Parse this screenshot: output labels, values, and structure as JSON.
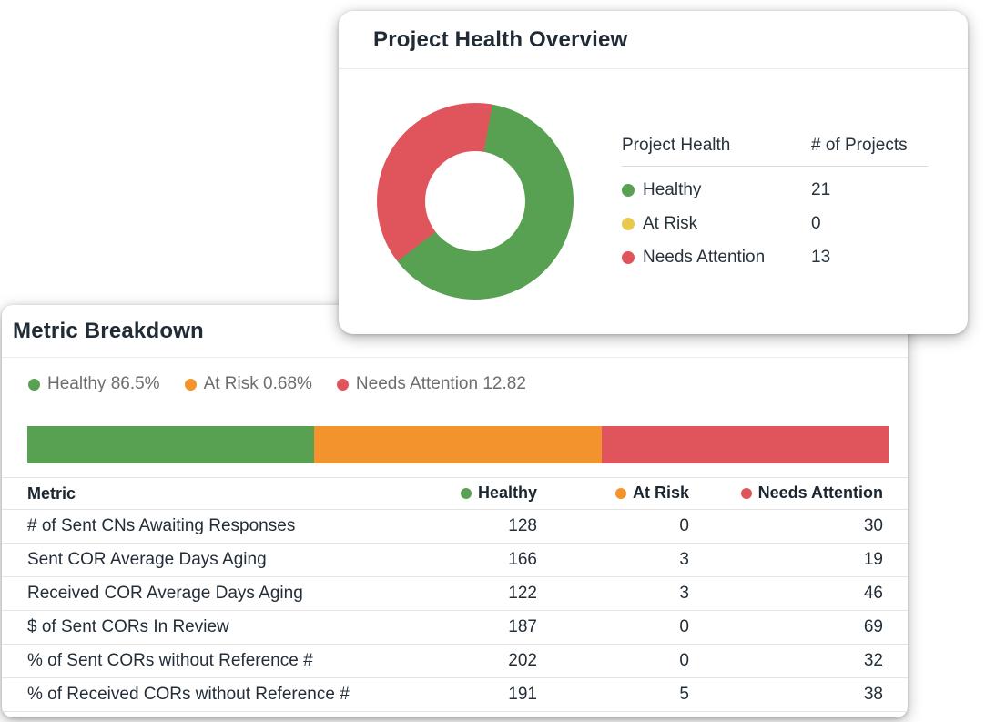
{
  "colors": {
    "healthy_green": "#58a152",
    "at_risk_yellow": "#e8c84e",
    "at_risk_orange": "#f2932d",
    "needs_attention_red": "#e0555c",
    "card_background": "#ffffff",
    "divider": "#ececec",
    "legend_gray_text": "#6e6e6e",
    "title_text": "#212b36"
  },
  "overview_card": {
    "title": "Project Health Overview",
    "legend": {
      "col1_header": "Project Health",
      "col2_header": "# of Projects",
      "rows": [
        {
          "label": "Healthy",
          "value": "21",
          "color": "#58a152"
        },
        {
          "label": "At Risk",
          "value": "0",
          "color": "#e8c84e"
        },
        {
          "label": "Needs Attention",
          "value": "13",
          "color": "#e0555c"
        }
      ]
    }
  },
  "breakdown_card": {
    "title": "Metric Breakdown",
    "legend": [
      {
        "label": "Healthy 86.5%",
        "color": "#58a152"
      },
      {
        "label": "At Risk 0.68%",
        "color": "#f2932d"
      },
      {
        "label": "Needs Attention 12.82",
        "color": "#e0555c"
      }
    ],
    "bar": {
      "segments": [
        {
          "name": "Healthy",
          "color": "#58a152",
          "display_width_pct": 33.33
        },
        {
          "name": "At Risk",
          "color": "#f2932d",
          "display_width_pct": 33.33
        },
        {
          "name": "Needs Attention",
          "color": "#e0555c",
          "display_width_pct": 33.34
        }
      ]
    },
    "table": {
      "headers": [
        {
          "label": "Metric"
        },
        {
          "label": "Healthy",
          "dot_color": "#58a152"
        },
        {
          "label": "At Risk",
          "dot_color": "#f2932d"
        },
        {
          "label": "Needs Attention",
          "dot_color": "#e0555c"
        }
      ],
      "rows": [
        {
          "metric": "# of Sent CNs Awaiting Responses",
          "healthy": "128",
          "at_risk": "0",
          "needs_attention": "30"
        },
        {
          "metric": "Sent COR Average Days Aging",
          "healthy": "166",
          "at_risk": "3",
          "needs_attention": "19"
        },
        {
          "metric": "Received COR Average Days Aging",
          "healthy": "122",
          "at_risk": "3",
          "needs_attention": "46"
        },
        {
          "metric": "$ of Sent CORs In Review",
          "healthy": "187",
          "at_risk": "0",
          "needs_attention": "69"
        },
        {
          "metric": "% of Sent CORs without Reference #",
          "healthy": "202",
          "at_risk": "0",
          "needs_attention": "32"
        },
        {
          "metric": "% of Received CORs without Reference #",
          "healthy": "191",
          "at_risk": "5",
          "needs_attention": "38"
        }
      ]
    }
  },
  "chart_data": [
    {
      "type": "pie",
      "donut": true,
      "title": "Project Health Overview",
      "labels": [
        "Healthy",
        "At Risk",
        "Needs Attention"
      ],
      "values": [
        21,
        0,
        13
      ],
      "colors": [
        "#58a152",
        "#e8c84e",
        "#e0555c"
      ],
      "start_angle_deg": 10,
      "legend_position": "right",
      "legend_headers": [
        "Project Health",
        "# of Projects"
      ]
    },
    {
      "type": "bar",
      "subtype": "horizontal-stacked-single",
      "title": "Metric Breakdown",
      "series": [
        {
          "name": "Healthy",
          "value_pct": 86.5,
          "color": "#58a152",
          "display_width_pct": 33.33
        },
        {
          "name": "At Risk",
          "value_pct": 0.68,
          "color": "#f2932d",
          "display_width_pct": 33.33
        },
        {
          "name": "Needs Attention",
          "value_pct": 12.82,
          "color": "#e0555c",
          "display_width_pct": 33.34
        }
      ],
      "legend_position": "top"
    },
    {
      "type": "table",
      "columns": [
        "Metric",
        "Healthy",
        "At Risk",
        "Needs Attention"
      ],
      "rows": [
        [
          "# of Sent CNs Awaiting Responses",
          128,
          0,
          30
        ],
        [
          "Sent COR Average Days Aging",
          166,
          3,
          19
        ],
        [
          "Received COR Average Days Aging",
          122,
          3,
          46
        ],
        [
          "$ of Sent CORs In Review",
          187,
          0,
          69
        ],
        [
          "% of Sent CORs without Reference #",
          202,
          0,
          32
        ],
        [
          "% of Received CORs without Reference #",
          191,
          5,
          38
        ]
      ]
    }
  ]
}
